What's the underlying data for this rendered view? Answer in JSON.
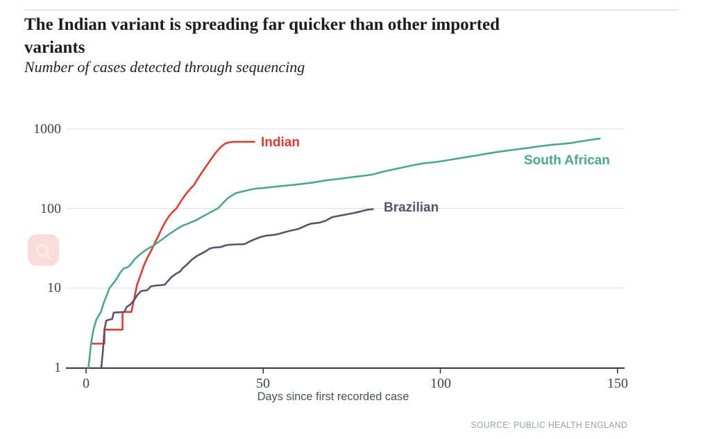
{
  "header": {
    "title_line1": "The Indian variant is spreading far quicker than other imported",
    "title_line2": "variants",
    "subtitle": "Number of cases detected through sequencing"
  },
  "footer": {
    "source": "SOURCE: PUBLIC HEALTH ENGLAND"
  },
  "ui": {
    "search_button": {
      "icon": "search-icon",
      "bg": "#fadcda",
      "glyph": "#fcedec"
    }
  },
  "chart_data": {
    "type": "line",
    "title": "The Indian variant is spreading far quicker than other imported variants",
    "subtitle": "Number of cases detected through sequencing",
    "xlabel": "Days since first recorded case",
    "ylabel": "Number of cases detected through sequencing",
    "grid": "horizontal",
    "legend_position": "inline-labels",
    "x_axis": {
      "min": 0,
      "max": 150,
      "ticks": [
        0,
        50,
        100,
        150
      ]
    },
    "y_axis": {
      "scale": "log",
      "min": 1,
      "max": 1000,
      "ticks": [
        1,
        10,
        100,
        1000
      ]
    },
    "xtick_labels": [
      "0",
      "50",
      "100",
      "150"
    ],
    "ytick_labels": [
      "1000",
      "100",
      "10",
      "1"
    ],
    "colors": {
      "grid": "#dedede",
      "axis": "#2b2b2b",
      "tick_text": "#3e4247",
      "source_text": "#9aa0a5"
    },
    "series": [
      {
        "name": "Indian",
        "color": "#e13b31",
        "points": [
          [
            1.5,
            2
          ],
          [
            5.2,
            2
          ],
          [
            5.2,
            3
          ],
          [
            10.3,
            3
          ],
          [
            10.3,
            5
          ],
          [
            12.8,
            5
          ],
          [
            13.5,
            7
          ],
          [
            14.4,
            11
          ],
          [
            15.5,
            15
          ],
          [
            16.3,
            19
          ],
          [
            17.3,
            24
          ],
          [
            18.3,
            29
          ],
          [
            19.3,
            36
          ],
          [
            20.3,
            44
          ],
          [
            21.4,
            56
          ],
          [
            22.4,
            68
          ],
          [
            23.4,
            80
          ],
          [
            24.4,
            90
          ],
          [
            25.5,
            100
          ],
          [
            26.5,
            118
          ],
          [
            27.5,
            138
          ],
          [
            28.5,
            158
          ],
          [
            29.5,
            178
          ],
          [
            30.5,
            198
          ],
          [
            31.5,
            235
          ],
          [
            32.5,
            275
          ],
          [
            33.5,
            320
          ],
          [
            34.5,
            370
          ],
          [
            35.5,
            430
          ],
          [
            36.5,
            495
          ],
          [
            37.5,
            560
          ],
          [
            38.5,
            615
          ],
          [
            39.3,
            655
          ],
          [
            40.2,
            675
          ],
          [
            41.5,
            688
          ],
          [
            47.5,
            690
          ]
        ]
      },
      {
        "name": "South African",
        "color": "#4ba690",
        "points": [
          [
            0.7,
            1
          ],
          [
            1.4,
            2
          ],
          [
            2.1,
            3
          ],
          [
            2.9,
            4
          ],
          [
            4.2,
            5
          ],
          [
            5,
            6.5
          ],
          [
            5.7,
            7.8
          ],
          [
            6.6,
            10
          ],
          [
            7.6,
            11.3
          ],
          [
            8.6,
            13
          ],
          [
            9.6,
            15.5
          ],
          [
            10.6,
            17.6
          ],
          [
            11.8,
            18.3
          ],
          [
            12.7,
            20
          ],
          [
            13.7,
            23
          ],
          [
            15,
            26
          ],
          [
            16.4,
            29
          ],
          [
            17.6,
            31.5
          ],
          [
            19,
            34
          ],
          [
            20.3,
            37.5
          ],
          [
            21.5,
            41
          ],
          [
            22.4,
            44
          ],
          [
            23.3,
            47
          ],
          [
            24.8,
            52
          ],
          [
            26,
            56.5
          ],
          [
            27.3,
            61
          ],
          [
            28.6,
            64
          ],
          [
            30,
            68
          ],
          [
            31.3,
            72
          ],
          [
            32.6,
            78
          ],
          [
            34,
            84
          ],
          [
            35.6,
            92
          ],
          [
            37.3,
            101
          ],
          [
            38.5,
            115
          ],
          [
            40,
            135
          ],
          [
            42.3,
            156
          ],
          [
            44,
            163
          ],
          [
            46,
            171
          ],
          [
            48,
            178
          ],
          [
            50.5,
            182
          ],
          [
            53,
            187
          ],
          [
            56,
            193
          ],
          [
            58.5,
            198
          ],
          [
            61.5,
            205
          ],
          [
            64.5,
            213
          ],
          [
            68,
            227
          ],
          [
            70.5,
            233
          ],
          [
            73,
            241
          ],
          [
            76,
            251
          ],
          [
            79,
            260
          ],
          [
            81,
            268
          ],
          [
            83.5,
            288
          ],
          [
            86,
            305
          ],
          [
            89,
            325
          ],
          [
            92,
            348
          ],
          [
            95,
            368
          ],
          [
            98,
            380
          ],
          [
            101,
            397
          ],
          [
            104,
            418
          ],
          [
            107,
            440
          ],
          [
            110,
            462
          ],
          [
            113,
            487
          ],
          [
            116,
            512
          ],
          [
            119,
            535
          ],
          [
            122,
            557
          ],
          [
            125,
            578
          ],
          [
            128,
            605
          ],
          [
            131,
            628
          ],
          [
            134,
            645
          ],
          [
            137,
            665
          ],
          [
            139.5,
            695
          ],
          [
            141.5,
            718
          ],
          [
            143.5,
            742
          ],
          [
            145,
            757
          ]
        ]
      },
      {
        "name": "Brazilian",
        "color": "#5c5168",
        "points": [
          [
            4.3,
            1
          ],
          [
            4.8,
            1.7
          ],
          [
            5.2,
            3
          ],
          [
            5.7,
            3.9
          ],
          [
            7.4,
            4.1
          ],
          [
            7.8,
            4.9
          ],
          [
            10.8,
            5
          ],
          [
            11.5,
            5.8
          ],
          [
            12.5,
            6.2
          ],
          [
            13.5,
            7
          ],
          [
            14.6,
            8.3
          ],
          [
            15.6,
            9.2
          ],
          [
            17.3,
            9.4
          ],
          [
            18.3,
            10.5
          ],
          [
            19.5,
            10.7
          ],
          [
            22.2,
            11
          ],
          [
            23.1,
            12.2
          ],
          [
            24.1,
            13.7
          ],
          [
            25.3,
            15
          ],
          [
            26.6,
            16.2
          ],
          [
            27.3,
            17.8
          ],
          [
            28.6,
            20
          ],
          [
            30,
            23
          ],
          [
            31.1,
            25
          ],
          [
            32.5,
            27
          ],
          [
            33.8,
            29
          ],
          [
            35,
            31.5
          ],
          [
            36.2,
            32.3
          ],
          [
            38,
            32.7
          ],
          [
            39.2,
            34.2
          ],
          [
            40.3,
            34.9
          ],
          [
            42,
            35.3
          ],
          [
            44.8,
            35.7
          ],
          [
            46.2,
            38.5
          ],
          [
            47.6,
            41
          ],
          [
            49.4,
            44
          ],
          [
            51,
            45.6
          ],
          [
            53.2,
            46.6
          ],
          [
            54.6,
            48.2
          ],
          [
            55.8,
            50
          ],
          [
            57.5,
            52.3
          ],
          [
            59.7,
            55
          ],
          [
            61.2,
            58.5
          ],
          [
            62.4,
            62
          ],
          [
            63.6,
            64.5
          ],
          [
            66,
            66.5
          ],
          [
            67.6,
            70
          ],
          [
            69.5,
            78
          ],
          [
            71.2,
            80.5
          ],
          [
            72.8,
            83
          ],
          [
            74.6,
            86
          ],
          [
            76,
            88.5
          ],
          [
            77.6,
            92
          ],
          [
            79.2,
            96
          ],
          [
            81,
            98
          ]
        ]
      }
    ]
  }
}
